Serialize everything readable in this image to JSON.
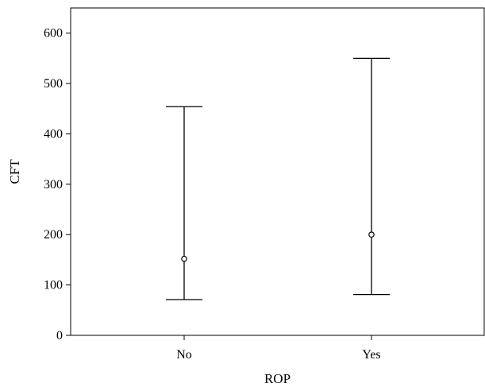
{
  "chart_data": {
    "type": "errorbar",
    "title": "",
    "xlabel": "ROP",
    "ylabel": "CFT",
    "categories": [
      "No",
      "Yes"
    ],
    "series": [
      {
        "values": [
          152,
          200
        ],
        "lower": [
          71,
          81
        ],
        "upper": [
          454,
          550
        ]
      }
    ],
    "ylim": [
      0,
      650
    ],
    "yticks": [
      0,
      100,
      200,
      300,
      400,
      500,
      600
    ],
    "grid": false,
    "legend": "none"
  }
}
